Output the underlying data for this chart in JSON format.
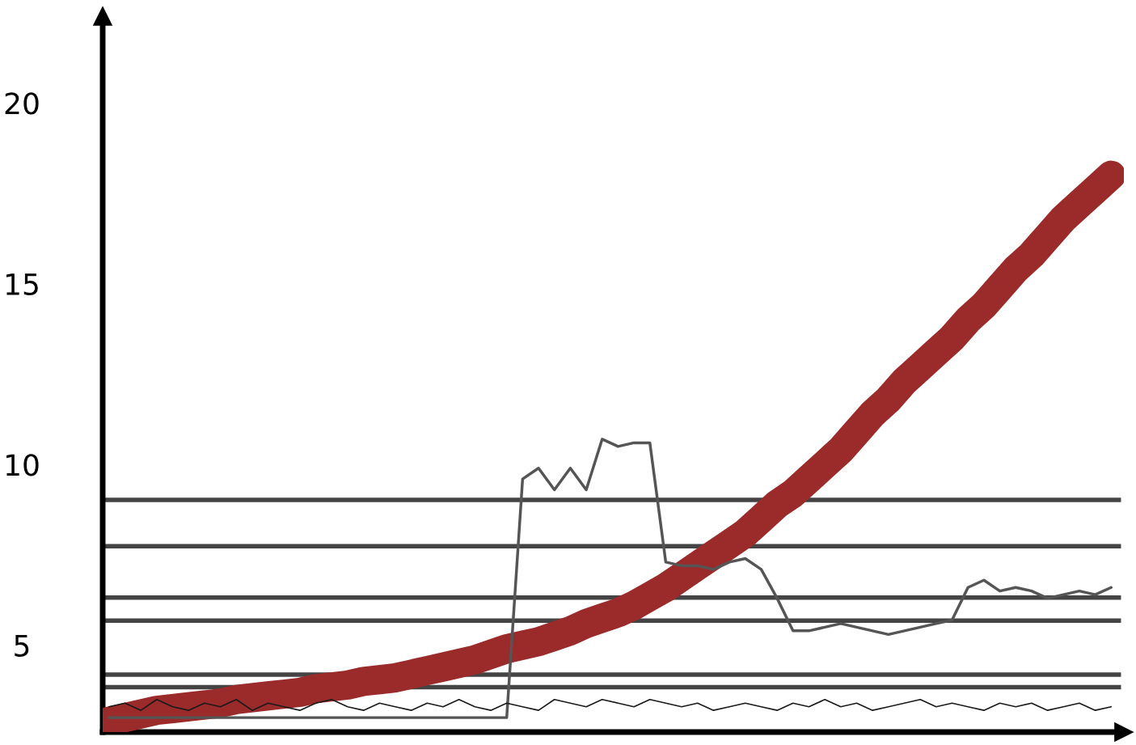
{
  "chart_data": {
    "type": "line",
    "categories": [
      null,
      null,
      null,
      null,
      null,
      null,
      null,
      null,
      null,
      null,
      null,
      null,
      null,
      null,
      null,
      null,
      null,
      null,
      null,
      null,
      null,
      null,
      null,
      null,
      null,
      null,
      null,
      null,
      null,
      null,
      null,
      null,
      null,
      null,
      null,
      null,
      null,
      null,
      null,
      null,
      null,
      null,
      null,
      null,
      null,
      null,
      null,
      null,
      null,
      null,
      null,
      null,
      null,
      null,
      null,
      null,
      null,
      null,
      null,
      null,
      null,
      null,
      null,
      null
    ],
    "series": [
      {
        "color": "#1a1a1a",
        "values": [
          3.3,
          3.4,
          3.2,
          3.5,
          3.3,
          3.2,
          3.4,
          3.3,
          3.5,
          3.2,
          3.4,
          3.3,
          3.2,
          3.4,
          3.5,
          3.3,
          3.2,
          3.4,
          3.3,
          3.2,
          3.4,
          3.3,
          3.5,
          3.3,
          3.2,
          3.4,
          3.3,
          3.2,
          3.5,
          3.4,
          3.3,
          3.5,
          3.4,
          3.3,
          3.5,
          3.4,
          3.3,
          3.4,
          3.2,
          3.3,
          3.4,
          3.3,
          3.2,
          3.4,
          3.3,
          3.5,
          3.3,
          3.4,
          3.2,
          3.3,
          3.4,
          3.5,
          3.3,
          3.4,
          3.3,
          3.2,
          3.4,
          3.3,
          3.4,
          3.2,
          3.3,
          3.4,
          3.2,
          3.3
        ]
      },
      {
        "color": "#9b2b2b",
        "values": [
          2.9,
          3.0,
          3.1,
          3.2,
          3.25,
          3.3,
          3.35,
          3.4,
          3.5,
          3.55,
          3.6,
          3.65,
          3.7,
          3.8,
          3.85,
          3.9,
          4.0,
          4.05,
          4.1,
          4.2,
          4.3,
          4.4,
          4.5,
          4.6,
          4.75,
          4.9,
          5.0,
          5.1,
          5.25,
          5.4,
          5.6,
          5.75,
          5.9,
          6.1,
          6.35,
          6.6,
          6.9,
          7.2,
          7.5,
          7.8,
          8.1,
          8.5,
          8.9,
          9.2,
          9.6,
          10.0,
          10.4,
          10.9,
          11.4,
          11.8,
          12.3,
          12.7,
          13.1,
          13.5,
          14.0,
          14.4,
          14.9,
          15.4,
          15.8,
          16.3,
          16.8,
          17.2,
          17.6,
          18.0
        ]
      },
      {
        "color": "#555555",
        "values": [
          3.0,
          3.0,
          3.0,
          3.0,
          3.0,
          3.0,
          3.0,
          3.0,
          3.0,
          3.0,
          3.0,
          3.0,
          3.0,
          3.0,
          3.0,
          3.0,
          3.0,
          3.0,
          3.0,
          3.0,
          3.0,
          3.0,
          3.0,
          3.0,
          3.0,
          3.0,
          9.6,
          9.9,
          9.3,
          9.9,
          9.3,
          10.7,
          10.5,
          10.6,
          10.6,
          7.3,
          7.2,
          7.2,
          7.1,
          7.3,
          7.4,
          7.1,
          6.3,
          5.4,
          5.4,
          5.5,
          5.6,
          5.5,
          5.4,
          5.3,
          5.4,
          5.5,
          5.6,
          5.7,
          6.6,
          6.8,
          6.5,
          6.6,
          6.5,
          6.3,
          6.4,
          6.5,
          6.4,
          6.6
        ]
      }
    ],
    "ylim": [
      2.6,
      22.4
    ],
    "yticks": [
      5,
      10,
      15,
      20
    ],
    "tick_labels": "y",
    "grid": false,
    "legend": false,
    "ref_lines": [
      {
        "axis": "y",
        "value": 9.02,
        "color": "#444444"
      },
      {
        "axis": "y",
        "value": 7.74,
        "color": "#444444"
      },
      {
        "axis": "y",
        "value": 6.32,
        "color": "#444444"
      },
      {
        "axis": "y",
        "value": 5.68,
        "color": "#444444"
      },
      {
        "axis": "y",
        "value": 4.19,
        "color": "#444444"
      },
      {
        "axis": "y",
        "value": 3.84,
        "color": "#444444"
      }
    ]
  }
}
